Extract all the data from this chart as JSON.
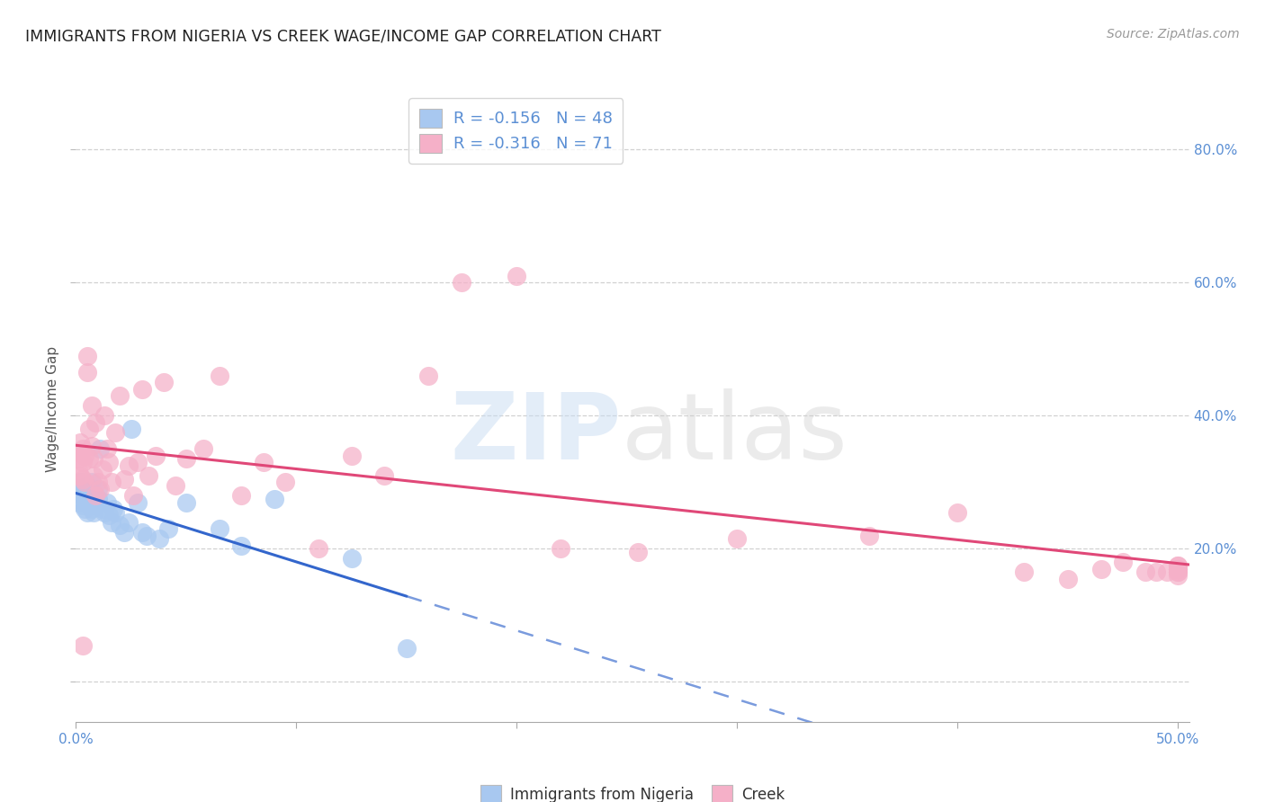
{
  "title": "IMMIGRANTS FROM NIGERIA VS CREEK WAGE/INCOME GAP CORRELATION CHART",
  "source": "Source: ZipAtlas.com",
  "ylabel": "Wage/Income Gap",
  "blue_R": -0.156,
  "blue_N": 48,
  "pink_R": -0.316,
  "pink_N": 71,
  "blue_dot_color": "#a8c8f0",
  "pink_dot_color": "#f5b0c8",
  "blue_line_color": "#3366cc",
  "pink_line_color": "#e04878",
  "xmin": 0.0,
  "xmax": 0.505,
  "ymin": -0.06,
  "ymax": 0.88,
  "legend_label_blue": "Immigrants from Nigeria",
  "legend_label_pink": "Creek",
  "blue_scatter_x": [
    0.001,
    0.001,
    0.002,
    0.002,
    0.002,
    0.003,
    0.003,
    0.003,
    0.004,
    0.004,
    0.004,
    0.005,
    0.005,
    0.005,
    0.006,
    0.006,
    0.007,
    0.007,
    0.007,
    0.008,
    0.008,
    0.009,
    0.009,
    0.01,
    0.01,
    0.011,
    0.012,
    0.013,
    0.014,
    0.015,
    0.016,
    0.017,
    0.018,
    0.02,
    0.022,
    0.024,
    0.025,
    0.028,
    0.03,
    0.032,
    0.038,
    0.042,
    0.05,
    0.065,
    0.075,
    0.09,
    0.125,
    0.15
  ],
  "blue_scatter_y": [
    0.295,
    0.275,
    0.285,
    0.27,
    0.3,
    0.265,
    0.28,
    0.29,
    0.26,
    0.275,
    0.285,
    0.27,
    0.255,
    0.295,
    0.265,
    0.275,
    0.26,
    0.285,
    0.3,
    0.27,
    0.255,
    0.265,
    0.28,
    0.275,
    0.29,
    0.35,
    0.26,
    0.255,
    0.27,
    0.25,
    0.24,
    0.26,
    0.255,
    0.235,
    0.225,
    0.24,
    0.38,
    0.27,
    0.225,
    0.22,
    0.215,
    0.23,
    0.27,
    0.23,
    0.205,
    0.275,
    0.185,
    0.05
  ],
  "pink_scatter_x": [
    0.001,
    0.001,
    0.002,
    0.002,
    0.002,
    0.003,
    0.003,
    0.003,
    0.004,
    0.004,
    0.005,
    0.005,
    0.006,
    0.006,
    0.007,
    0.007,
    0.008,
    0.008,
    0.009,
    0.009,
    0.01,
    0.011,
    0.012,
    0.013,
    0.014,
    0.015,
    0.016,
    0.018,
    0.02,
    0.022,
    0.024,
    0.026,
    0.028,
    0.03,
    0.033,
    0.036,
    0.04,
    0.045,
    0.05,
    0.058,
    0.065,
    0.075,
    0.085,
    0.095,
    0.11,
    0.125,
    0.14,
    0.16,
    0.175,
    0.2,
    0.22,
    0.255,
    0.3,
    0.36,
    0.4,
    0.43,
    0.45,
    0.465,
    0.475,
    0.485,
    0.49,
    0.495,
    0.5,
    0.5,
    0.5,
    0.5,
    0.5,
    0.5,
    0.5,
    0.5,
    0.003
  ],
  "pink_scatter_y": [
    0.335,
    0.32,
    0.345,
    0.31,
    0.36,
    0.33,
    0.305,
    0.35,
    0.3,
    0.34,
    0.49,
    0.465,
    0.335,
    0.38,
    0.415,
    0.355,
    0.335,
    0.31,
    0.39,
    0.28,
    0.3,
    0.29,
    0.32,
    0.4,
    0.35,
    0.33,
    0.3,
    0.375,
    0.43,
    0.305,
    0.325,
    0.28,
    0.33,
    0.44,
    0.31,
    0.34,
    0.45,
    0.295,
    0.335,
    0.35,
    0.46,
    0.28,
    0.33,
    0.3,
    0.2,
    0.34,
    0.31,
    0.46,
    0.6,
    0.61,
    0.2,
    0.195,
    0.215,
    0.22,
    0.255,
    0.165,
    0.155,
    0.17,
    0.18,
    0.165,
    0.165,
    0.165,
    0.17,
    0.175,
    0.165,
    0.165,
    0.16,
    0.17,
    0.175,
    0.17,
    0.055
  ],
  "blue_trend_x0": 0.0,
  "blue_trend_x_solid_end": 0.15,
  "blue_trend_x_dash_end": 0.505,
  "pink_trend_x0": 0.0,
  "pink_trend_x_end": 0.505
}
